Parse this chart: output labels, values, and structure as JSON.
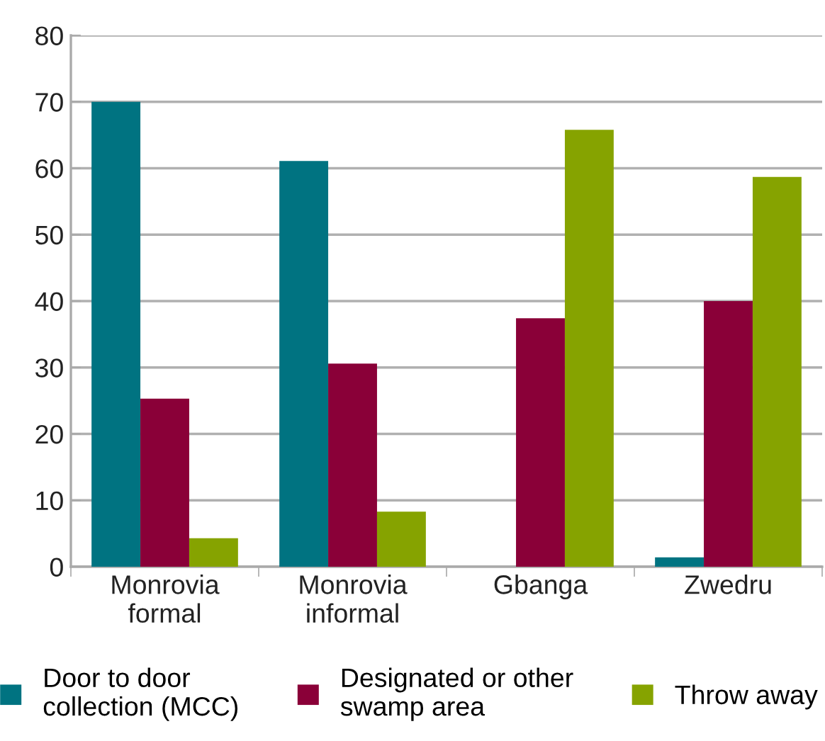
{
  "chart_data": {
    "type": "bar",
    "categories": [
      "Monrovia\nformal",
      "Monrovia\ninformal",
      "Gbanga",
      "Zwedru"
    ],
    "series": [
      {
        "name": "Door to door\ncollection (MCC)",
        "color": "#007381",
        "values": [
          70,
          61.1,
          0,
          1.4
        ]
      },
      {
        "name": "Designated or other\nswamp area",
        "color": "#8a0038",
        "values": [
          25.3,
          30.6,
          37.4,
          40
        ]
      },
      {
        "name": "Throw away",
        "color": "#86a300",
        "values": [
          4.3,
          8.3,
          65.8,
          58.7
        ]
      }
    ],
    "ylim": [
      0,
      80
    ],
    "yticks": [
      0,
      10,
      20,
      30,
      40,
      50,
      60,
      70,
      80
    ],
    "grid": "y",
    "legend": "bottom"
  }
}
